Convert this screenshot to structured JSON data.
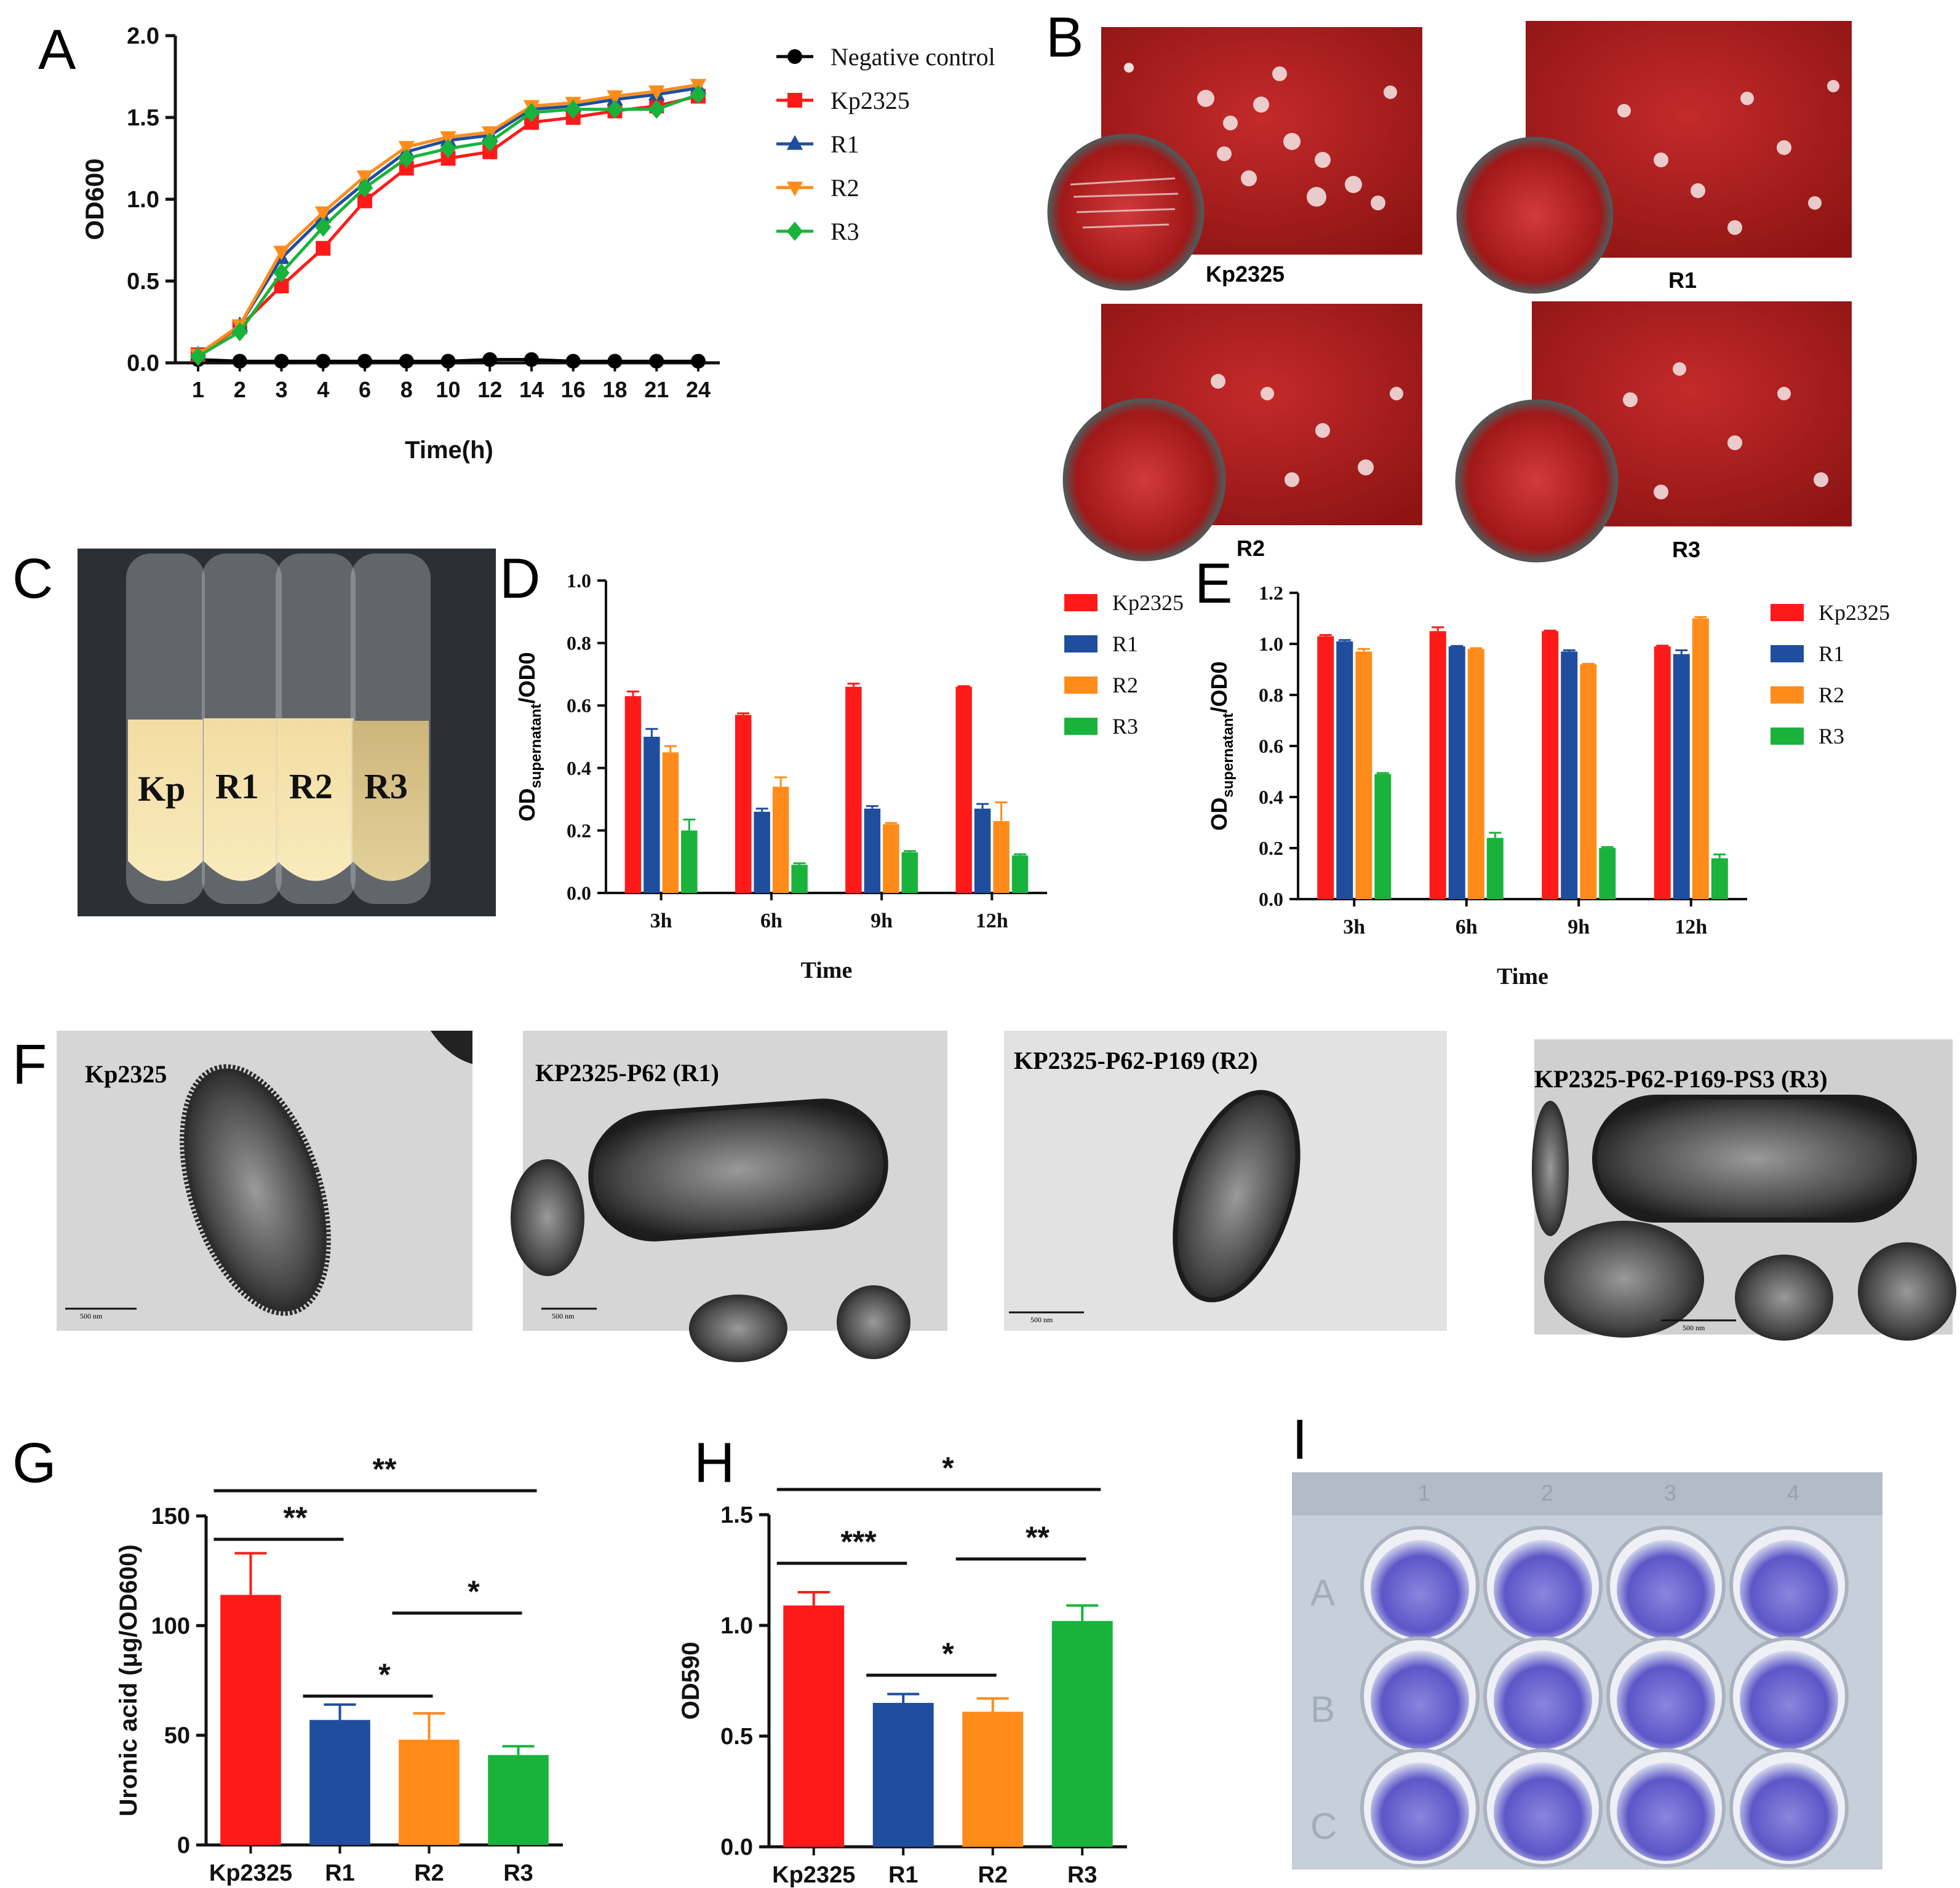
{
  "panel_letters": {
    "A": "A",
    "B": "B",
    "C": "C",
    "D": "D",
    "E": "E",
    "F": "F",
    "G": "G",
    "H": "H",
    "I": "I"
  },
  "colors": {
    "negative": "#000000",
    "kp": "#ff1a1a",
    "r1": "#1f4e9e",
    "r2": "#ff8c1a",
    "r3": "#19b33c"
  },
  "photos_b": {
    "captions": [
      "Kp2325",
      "R1",
      "R2",
      "R3"
    ]
  },
  "photo_c": {
    "tube_labels": [
      "Kp",
      "R1",
      "R2",
      "R3"
    ]
  },
  "tem_f": {
    "captions": [
      "Kp2325",
      "KP2325-P62 (R1)",
      "KP2325-P62-P169 (R2)",
      "KP2325-P62-P169-PS3 (R3)"
    ],
    "scale_text": "500 nm"
  },
  "plate_i": {
    "column_marks": [
      "1",
      "2",
      "3",
      "4"
    ],
    "row_marks": [
      "A",
      "B",
      "C"
    ]
  },
  "chart_data": [
    {
      "panel": "A",
      "type": "line",
      "xlabel": "Time(h)",
      "ylabel": "OD600",
      "categories": [
        "1",
        "2",
        "3",
        "4",
        "6",
        "8",
        "10",
        "12",
        "14",
        "16",
        "18",
        "21",
        "24"
      ],
      "ylim": [
        0,
        2.0
      ],
      "yticks": [
        "0.0",
        "0.5",
        "1.0",
        "1.5",
        "2.0"
      ],
      "legend": "right",
      "series": [
        {
          "name": "Negative control",
          "marker": "circle",
          "values": [
            0.02,
            0.01,
            0.01,
            0.01,
            0.01,
            0.01,
            0.01,
            0.02,
            0.02,
            0.01,
            0.01,
            0.01,
            0.01
          ]
        },
        {
          "name": "Kp2325",
          "marker": "square",
          "values": [
            0.05,
            0.22,
            0.47,
            0.7,
            0.99,
            1.19,
            1.25,
            1.29,
            1.47,
            1.5,
            1.54,
            1.57,
            1.63
          ]
        },
        {
          "name": "R1",
          "marker": "triangle-up",
          "values": [
            0.05,
            0.23,
            0.64,
            0.89,
            1.1,
            1.29,
            1.36,
            1.39,
            1.55,
            1.57,
            1.61,
            1.64,
            1.68
          ]
        },
        {
          "name": "R2",
          "marker": "triangle-down",
          "values": [
            0.05,
            0.23,
            0.68,
            0.92,
            1.14,
            1.32,
            1.38,
            1.41,
            1.57,
            1.59,
            1.63,
            1.66,
            1.7
          ]
        },
        {
          "name": "R3",
          "marker": "diamond",
          "values": [
            0.04,
            0.19,
            0.55,
            0.83,
            1.07,
            1.25,
            1.31,
            1.35,
            1.53,
            1.55,
            1.55,
            1.55,
            1.64
          ]
        }
      ]
    },
    {
      "panel": "D",
      "type": "bar",
      "xlabel": "Time",
      "ylabel_main": "OD",
      "ylabel_sub": "supernatant",
      "ylabel_tail": "/OD0",
      "categories": [
        "3h",
        "6h",
        "9h",
        "12h"
      ],
      "ylim": [
        0,
        1.0
      ],
      "yticks": [
        "0.0",
        "0.2",
        "0.4",
        "0.6",
        "0.8",
        "1.0"
      ],
      "legend": "right",
      "series": [
        {
          "name": "Kp2325",
          "values": [
            0.63,
            0.57,
            0.66,
            0.66
          ],
          "errors": [
            0.015,
            0.005,
            0.01,
            0.002
          ]
        },
        {
          "name": "R1",
          "values": [
            0.5,
            0.26,
            0.27,
            0.27
          ],
          "errors": [
            0.025,
            0.01,
            0.008,
            0.015
          ]
        },
        {
          "name": "R2",
          "values": [
            0.45,
            0.34,
            0.22,
            0.23
          ],
          "errors": [
            0.02,
            0.03,
            0.004,
            0.06
          ]
        },
        {
          "name": "R3",
          "values": [
            0.2,
            0.09,
            0.13,
            0.12
          ],
          "errors": [
            0.035,
            0.005,
            0.004,
            0.004
          ]
        }
      ]
    },
    {
      "panel": "E",
      "type": "bar",
      "xlabel": "Time",
      "ylabel_main": "OD",
      "ylabel_sub": "supernatant",
      "ylabel_tail": "/OD0",
      "categories": [
        "3h",
        "6h",
        "9h",
        "12h"
      ],
      "ylim": [
        0,
        1.2
      ],
      "yticks": [
        "0.0",
        "0.2",
        "0.4",
        "0.6",
        "0.8",
        "1.0",
        "1.2"
      ],
      "legend": "right",
      "series": [
        {
          "name": "Kp2325",
          "values": [
            1.03,
            1.05,
            1.05,
            0.99
          ],
          "errors": [
            0.005,
            0.015,
            0.002,
            0.003
          ]
        },
        {
          "name": "R1",
          "values": [
            1.01,
            0.99,
            0.97,
            0.96
          ],
          "errors": [
            0.005,
            0.002,
            0.005,
            0.015
          ]
        },
        {
          "name": "R2",
          "values": [
            0.97,
            0.98,
            0.92,
            1.1
          ],
          "errors": [
            0.01,
            0.003,
            0.002,
            0.005
          ]
        },
        {
          "name": "R3",
          "values": [
            0.49,
            0.24,
            0.2,
            0.16
          ],
          "errors": [
            0.004,
            0.02,
            0.004,
            0.015
          ]
        }
      ]
    },
    {
      "panel": "G",
      "type": "bar",
      "ylabel": "Uronic acid (μg/OD600)",
      "categories": [
        "Kp2325",
        "R1",
        "R2",
        "R3"
      ],
      "values": [
        114,
        57,
        48,
        41
      ],
      "errors": [
        19,
        7,
        12,
        4
      ],
      "ylim": [
        0,
        150
      ],
      "yticks": [
        "0",
        "50",
        "100",
        "150"
      ],
      "significance": [
        {
          "from": 0,
          "to": 3,
          "text": "**"
        },
        {
          "from": 0,
          "to": 1,
          "text": "**"
        },
        {
          "from": 1,
          "to": 2,
          "text": "*"
        },
        {
          "from": 2,
          "to": 3,
          "text": "*"
        }
      ]
    },
    {
      "panel": "H",
      "type": "bar",
      "ylabel": "OD590",
      "categories": [
        "Kp2325",
        "R1",
        "R2",
        "R3"
      ],
      "values": [
        1.09,
        0.65,
        0.61,
        1.02
      ],
      "errors": [
        0.06,
        0.04,
        0.06,
        0.07
      ],
      "ylim": [
        0,
        1.5
      ],
      "yticks": [
        "0.0",
        "0.5",
        "1.0",
        "1.5"
      ],
      "significance": [
        {
          "from": 0,
          "to": 3,
          "text": "*"
        },
        {
          "from": 0,
          "to": 1,
          "text": "***"
        },
        {
          "from": 1,
          "to": 2,
          "text": "*"
        },
        {
          "from": 2,
          "to": 3,
          "text": "**"
        }
      ]
    }
  ]
}
